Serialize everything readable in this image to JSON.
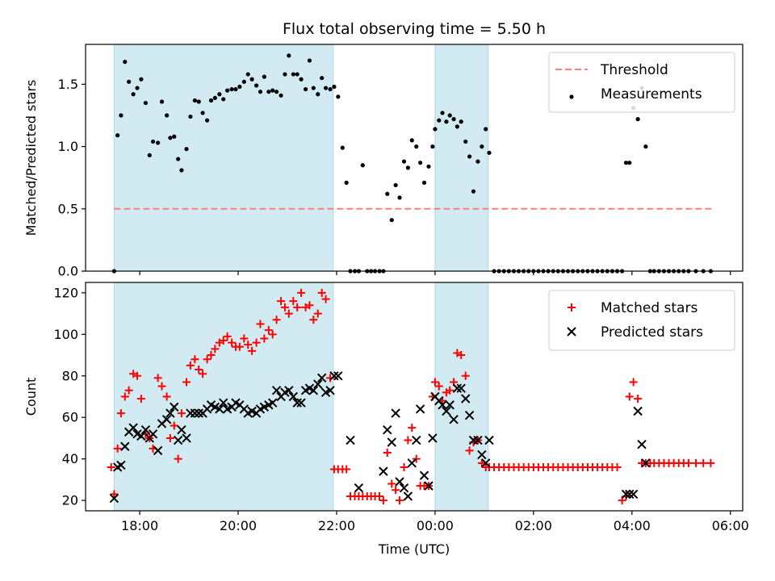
{
  "chart_data": [
    {
      "type": "scatter",
      "panel": "top",
      "title": "Flux total observing time = 5.50 h",
      "xlabel": "",
      "ylabel": "Matched/Predicted stars",
      "x_unit": "hours",
      "xlim": [
        16.9,
        30.25
      ],
      "ylim": [
        0.0,
        1.82
      ],
      "yticks": [
        0.0,
        0.5,
        1.0,
        1.5
      ],
      "ytick_labels": [
        "0.0",
        "0.5",
        "1.0",
        "1.5"
      ],
      "xticks": [
        18,
        20,
        22,
        24,
        26,
        28,
        30
      ],
      "shaded_intervals": [
        [
          17.48,
          21.93
        ],
        [
          24.0,
          25.08
        ]
      ],
      "shade_color": "#add8e6",
      "legend_position": "top-right",
      "threshold": {
        "name": "Threshold",
        "value": 0.5,
        "x_range": [
          17.48,
          29.67
        ],
        "color": "#ff7f7f"
      },
      "series": [
        {
          "name": "Measurements",
          "color": "#000000",
          "marker": "dot",
          "x": [
            17.48,
            17.55,
            17.62,
            17.7,
            17.78,
            17.87,
            17.95,
            18.03,
            18.12,
            18.2,
            18.27,
            18.37,
            18.45,
            18.55,
            18.62,
            18.7,
            18.78,
            18.85,
            18.95,
            19.03,
            19.12,
            19.2,
            19.28,
            19.37,
            19.45,
            19.53,
            19.62,
            19.7,
            19.78,
            19.87,
            19.95,
            20.03,
            20.12,
            20.2,
            20.28,
            20.37,
            20.45,
            20.53,
            20.62,
            20.7,
            20.78,
            20.87,
            20.95,
            21.03,
            21.12,
            21.2,
            21.28,
            21.37,
            21.45,
            21.53,
            21.62,
            21.7,
            21.78,
            21.87,
            21.95,
            22.03,
            22.12,
            22.2,
            22.28,
            22.37,
            22.45,
            22.53,
            22.62,
            22.7,
            22.78,
            22.87,
            22.95,
            23.03,
            23.12,
            23.2,
            23.28,
            23.37,
            23.45,
            23.53,
            23.62,
            23.7,
            23.78,
            23.87,
            23.95,
            24.0,
            24.08,
            24.15,
            24.23,
            24.3,
            24.38,
            24.45,
            24.53,
            24.62,
            24.7,
            24.78,
            24.87,
            24.95,
            25.03,
            25.1,
            25.2,
            25.3,
            25.4,
            25.5,
            25.6,
            25.7,
            25.8,
            25.9,
            26.0,
            26.1,
            26.2,
            26.3,
            26.4,
            26.5,
            26.6,
            26.7,
            26.8,
            26.9,
            27.0,
            27.1,
            27.2,
            27.3,
            27.4,
            27.5,
            27.6,
            27.7,
            27.8,
            27.88,
            27.95,
            28.03,
            28.12,
            28.2,
            28.28,
            28.37,
            28.45,
            28.55,
            28.65,
            28.75,
            28.85,
            28.95,
            29.05,
            29.15,
            29.3,
            29.45,
            29.6
          ],
          "y": [
            0.0,
            1.09,
            1.25,
            1.68,
            1.52,
            1.42,
            1.47,
            1.54,
            1.35,
            0.93,
            1.04,
            1.03,
            1.36,
            1.25,
            1.07,
            1.08,
            0.9,
            0.81,
            0.98,
            1.24,
            1.37,
            1.36,
            1.27,
            1.21,
            1.37,
            1.39,
            1.42,
            1.38,
            1.45,
            1.46,
            1.46,
            1.48,
            1.52,
            1.58,
            1.54,
            1.49,
            1.44,
            1.56,
            1.44,
            1.45,
            1.44,
            1.41,
            1.58,
            1.73,
            1.58,
            1.58,
            1.54,
            1.46,
            1.69,
            1.47,
            1.42,
            1.55,
            1.47,
            1.46,
            1.48,
            1.4,
            0.99,
            0.71,
            0.0,
            0.0,
            0.0,
            0.85,
            0.0,
            0.0,
            0.0,
            0.0,
            0.0,
            0.62,
            0.41,
            0.69,
            0.59,
            0.88,
            0.83,
            1.05,
            1.0,
            0.87,
            0.71,
            0.84,
            1.0,
            1.14,
            1.21,
            1.27,
            1.2,
            1.25,
            1.22,
            1.16,
            1.2,
            1.04,
            0.92,
            0.64,
            0.88,
            1.0,
            1.14,
            0.95,
            0.0,
            0.0,
            0.0,
            0.0,
            0.0,
            0.0,
            0.0,
            0.0,
            0.0,
            0.0,
            0.0,
            0.0,
            0.0,
            0.0,
            0.0,
            0.0,
            0.0,
            0.0,
            0.0,
            0.0,
            0.0,
            0.0,
            0.0,
            0.0,
            0.0,
            0.0,
            0.0,
            0.87,
            0.87,
            1.31,
            1.22,
            1.47,
            1.0,
            0.0,
            0.0,
            0.0,
            0.0,
            0.0,
            0.0,
            0.0,
            0.0,
            0.0,
            0.0,
            0.0,
            0.0
          ]
        }
      ]
    },
    {
      "type": "scatter",
      "panel": "bottom",
      "title": "",
      "xlabel": "Time (UTC)",
      "ylabel": "Count",
      "x_unit": "hours",
      "xlim": [
        16.9,
        30.25
      ],
      "ylim": [
        15,
        125
      ],
      "yticks": [
        20,
        40,
        60,
        80,
        100,
        120
      ],
      "ytick_labels": [
        "20",
        "40",
        "60",
        "80",
        "100",
        "120"
      ],
      "xticks": [
        18,
        20,
        22,
        24,
        26,
        28,
        30
      ],
      "xtick_labels": [
        "18:00",
        "20:00",
        "22:00",
        "00:00",
        "02:00",
        "04:00",
        "06:00"
      ],
      "shaded_intervals": [
        [
          17.48,
          21.93
        ],
        [
          24.0,
          25.08
        ]
      ],
      "shade_color": "#add8e6",
      "legend_position": "top-right",
      "series": [
        {
          "name": "Matched stars",
          "color": "#ff0000",
          "marker": "plus",
          "x": [
            17.42,
            17.48,
            17.55,
            17.62,
            17.7,
            17.78,
            17.87,
            17.95,
            18.03,
            18.12,
            18.2,
            18.27,
            18.37,
            18.45,
            18.55,
            18.62,
            18.7,
            18.78,
            18.85,
            18.95,
            19.03,
            19.12,
            19.2,
            19.28,
            19.37,
            19.45,
            19.53,
            19.62,
            19.7,
            19.78,
            19.87,
            19.95,
            20.03,
            20.12,
            20.2,
            20.28,
            20.37,
            20.45,
            20.53,
            20.62,
            20.7,
            20.78,
            20.87,
            20.95,
            21.03,
            21.12,
            21.2,
            21.28,
            21.37,
            21.45,
            21.53,
            21.62,
            21.7,
            21.78,
            21.87,
            21.95,
            22.03,
            22.12,
            22.2,
            22.28,
            22.37,
            22.45,
            22.53,
            22.62,
            22.7,
            22.78,
            22.87,
            22.95,
            23.03,
            23.12,
            23.2,
            23.28,
            23.37,
            23.45,
            23.53,
            23.62,
            23.7,
            23.78,
            23.87,
            23.95,
            24.0,
            24.08,
            24.15,
            24.23,
            24.3,
            24.38,
            24.45,
            24.53,
            24.62,
            24.7,
            24.78,
            24.87,
            24.95,
            25.03,
            25.1,
            25.2,
            25.3,
            25.4,
            25.5,
            25.6,
            25.7,
            25.8,
            25.9,
            26.0,
            26.1,
            26.2,
            26.3,
            26.4,
            26.5,
            26.6,
            26.7,
            26.8,
            26.9,
            27.0,
            27.1,
            27.2,
            27.3,
            27.4,
            27.5,
            27.6,
            27.7,
            27.8,
            27.88,
            27.95,
            28.03,
            28.12,
            28.2,
            28.28,
            28.37,
            28.45,
            28.55,
            28.65,
            28.75,
            28.85,
            28.95,
            29.05,
            29.15,
            29.3,
            29.45,
            29.6
          ],
          "y": [
            36,
            23,
            45,
            62,
            70,
            73,
            81,
            80,
            69,
            52,
            50,
            45,
            79,
            75,
            70,
            50,
            56,
            40,
            62,
            77,
            85,
            88,
            83,
            81,
            88,
            90,
            93,
            96,
            97,
            99,
            96,
            94,
            94,
            98,
            95,
            92,
            96,
            105,
            98,
            102,
            100,
            107,
            116,
            113,
            110,
            116,
            113,
            120,
            113,
            114,
            107,
            110,
            120,
            117,
            79,
            35,
            35,
            35,
            35,
            22,
            22,
            22,
            22,
            22,
            22,
            22,
            22,
            20,
            43,
            28,
            25,
            20,
            36,
            49,
            55,
            40,
            27,
            27,
            27,
            70,
            77,
            75,
            68,
            72,
            73,
            77,
            91,
            90,
            80,
            44,
            48,
            49,
            38,
            36,
            36,
            36,
            36,
            36,
            36,
            36,
            36,
            36,
            36,
            36,
            36,
            36,
            36,
            36,
            36,
            36,
            36,
            36,
            36,
            36,
            36,
            36,
            36,
            36,
            36,
            36,
            36,
            20,
            22,
            70,
            77,
            69,
            38,
            38,
            38,
            38,
            38,
            38,
            38,
            38,
            38,
            38,
            38,
            38,
            38,
            38
          ]
        },
        {
          "name": "Predicted stars",
          "color": "#000000",
          "marker": "x",
          "x": [
            17.48,
            17.55,
            17.62,
            17.7,
            17.78,
            17.87,
            17.95,
            18.03,
            18.12,
            18.2,
            18.27,
            18.37,
            18.45,
            18.55,
            18.62,
            18.7,
            18.78,
            18.85,
            18.95,
            19.03,
            19.12,
            19.2,
            19.28,
            19.37,
            19.45,
            19.53,
            19.62,
            19.7,
            19.78,
            19.87,
            19.95,
            20.03,
            20.12,
            20.2,
            20.28,
            20.37,
            20.45,
            20.53,
            20.62,
            20.7,
            20.78,
            20.87,
            20.95,
            21.03,
            21.12,
            21.2,
            21.28,
            21.37,
            21.45,
            21.53,
            21.62,
            21.7,
            21.78,
            21.87,
            21.95,
            22.03,
            22.28,
            22.45,
            22.95,
            23.03,
            23.12,
            23.2,
            23.28,
            23.37,
            23.45,
            23.53,
            23.62,
            23.7,
            23.78,
            23.87,
            23.95,
            24.0,
            24.08,
            24.15,
            24.23,
            24.3,
            24.38,
            24.45,
            24.53,
            24.62,
            24.7,
            24.78,
            24.87,
            24.95,
            25.03,
            25.1,
            27.88,
            27.95,
            28.03,
            28.12,
            28.2,
            28.28
          ],
          "y": [
            21,
            36,
            37,
            46,
            53,
            55,
            52,
            51,
            54,
            50,
            52,
            44,
            57,
            59,
            62,
            65,
            49,
            54,
            50,
            62,
            62,
            62,
            62,
            64,
            66,
            65,
            64,
            67,
            64,
            65,
            67,
            66,
            64,
            62,
            63,
            62,
            64,
            65,
            66,
            67,
            73,
            70,
            72,
            73,
            70,
            67,
            67,
            73,
            74,
            73,
            76,
            79,
            72,
            73,
            80,
            80,
            49,
            26,
            34,
            54,
            48,
            62,
            29,
            26,
            22,
            38,
            49,
            64,
            32,
            27,
            50,
            70,
            68,
            66,
            63,
            66,
            59,
            74,
            74,
            69,
            61,
            49,
            49,
            42,
            38,
            49,
            23,
            23,
            23,
            63,
            47,
            38
          ]
        }
      ]
    }
  ]
}
